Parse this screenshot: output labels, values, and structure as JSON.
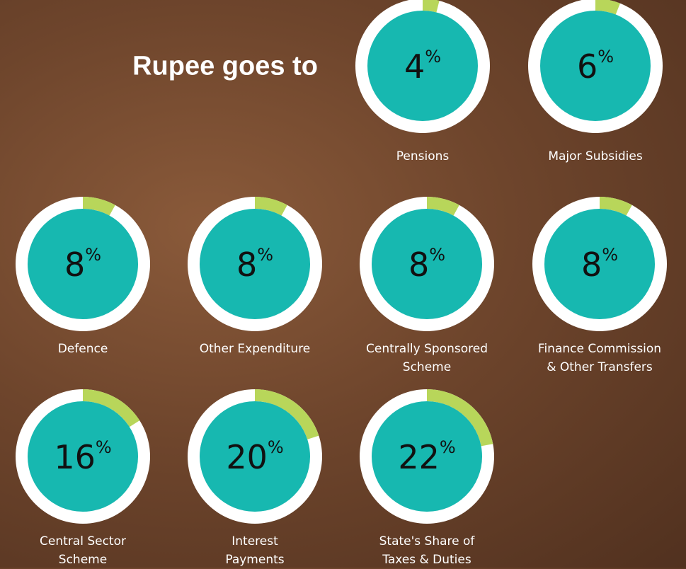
{
  "chart_data": {
    "type": "donut",
    "title": "Rupee goes to",
    "categories": [
      "Pensions",
      "Major Subsidies",
      "Defence",
      "Other Expenditure",
      "Centrally Sponsored Scheme",
      "Finance Commission & Other Transfers",
      "Central Sector Scheme",
      "Interest Payments",
      "State's Share of Taxes & Duties"
    ],
    "values": [
      4,
      6,
      8,
      8,
      8,
      8,
      16,
      20,
      22
    ],
    "value_labels": [
      "4%",
      "6%",
      "8%",
      "8%",
      "8%",
      "8%",
      "16%",
      "20%",
      "22%"
    ],
    "color": "#b8d65a",
    "center_color": "#17b8b0",
    "ring_color": "#ffffff"
  }
}
